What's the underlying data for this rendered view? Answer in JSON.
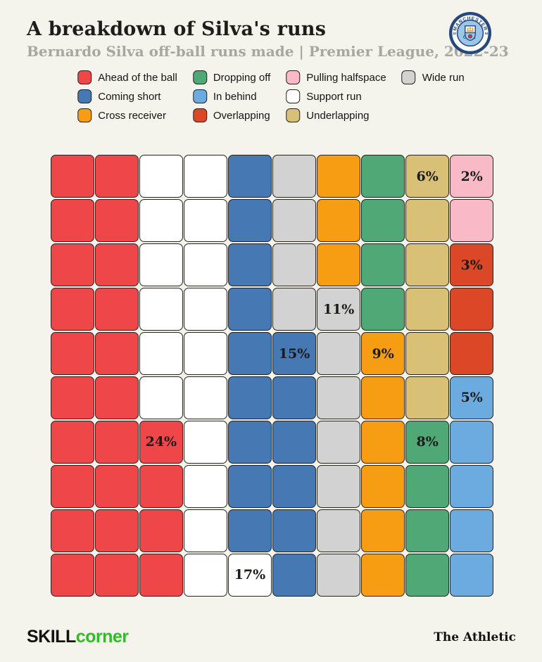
{
  "header": {
    "title": "A breakdown of Silva's runs",
    "subtitle": "Bernardo Silva off-ball runs made | Premier League, 2022-23"
  },
  "badge": {
    "club": "Manchester City",
    "top_text": "MANCHESTER",
    "bottom_text": "CITY",
    "left_text": "18",
    "right_text": "94",
    "colors": {
      "navy": "#26497d",
      "sky": "#9bc6e8",
      "white": "#ffffff",
      "ship_gold": "#e0a33e",
      "rose_red": "#d93a35"
    }
  },
  "legend": {
    "columns": [
      [
        "ahead_of_the_ball",
        "coming_short",
        "cross_receiver"
      ],
      [
        "dropping_off",
        "in_behind",
        "overlapping"
      ],
      [
        "pulling_halfspace",
        "support_run",
        "underlapping"
      ],
      [
        "wide_run"
      ]
    ]
  },
  "chart_data": {
    "type": "waffle",
    "title": "A breakdown of Silva's runs",
    "subtitle": "Bernardo Silva off-ball runs made | Premier League, 2022-23",
    "unit": "percent of off-ball runs (each cell = 1%)",
    "grid_size": {
      "rows": 10,
      "cols": 10
    },
    "categories": {
      "ahead_of_the_ball": {
        "label": "Ahead of the ball",
        "color": "#ef4649",
        "percent": 24
      },
      "coming_short": {
        "label": "Coming short",
        "color": "#4678b4",
        "percent": 15
      },
      "cross_receiver": {
        "label": "Cross receiver",
        "color": "#f79d13",
        "percent": 9
      },
      "dropping_off": {
        "label": "Dropping off",
        "color": "#4fa875",
        "percent": 8
      },
      "in_behind": {
        "label": "In behind",
        "color": "#6babdf",
        "percent": 5
      },
      "overlapping": {
        "label": "Overlapping",
        "color": "#dc4727",
        "percent": 3
      },
      "pulling_halfspace": {
        "label": "Pulling halfspace",
        "color": "#f9b9c7",
        "percent": 2
      },
      "support_run": {
        "label": "Support run",
        "color": "#ffffff",
        "percent": 17
      },
      "underlapping": {
        "label": "Underlapping",
        "color": "#d9c077",
        "percent": 6
      },
      "wide_run": {
        "label": "Wide run",
        "color": "#d2d2d2",
        "percent": 11
      }
    },
    "codes": {
      "A": "ahead_of_the_ball",
      "C": "coming_short",
      "X": "cross_receiver",
      "D": "dropping_off",
      "I": "in_behind",
      "O": "overlapping",
      "P": "pulling_halfspace",
      "S": "support_run",
      "U": "underlapping",
      "W": "wide_run"
    },
    "grid_rows": [
      "AASSCWXDUP",
      "AASSCWXDUP",
      "AASSCWXDUO",
      "AASSCWWDUO",
      "AASSCCWXUO",
      "AASSCCWXUI",
      "AAASCCWXDI",
      "AAASCCWXDI",
      "AAASCCWXDI",
      "AAASSCWXDI"
    ],
    "cell_labels": [
      {
        "row": 0,
        "col": 8,
        "text": "6%"
      },
      {
        "row": 0,
        "col": 9,
        "text": "2%"
      },
      {
        "row": 2,
        "col": 9,
        "text": "3%"
      },
      {
        "row": 3,
        "col": 6,
        "text": "11%"
      },
      {
        "row": 4,
        "col": 5,
        "text": "15%"
      },
      {
        "row": 4,
        "col": 7,
        "text": "9%"
      },
      {
        "row": 5,
        "col": 9,
        "text": "5%"
      },
      {
        "row": 6,
        "col": 2,
        "text": "24%"
      },
      {
        "row": 6,
        "col": 8,
        "text": "8%"
      },
      {
        "row": 9,
        "col": 4,
        "text": "17%"
      }
    ]
  },
  "footer": {
    "brand_black": "SKILL",
    "brand_green": "corner",
    "brand_green_color": "#2dbe21",
    "right_text": "The Athletic"
  }
}
